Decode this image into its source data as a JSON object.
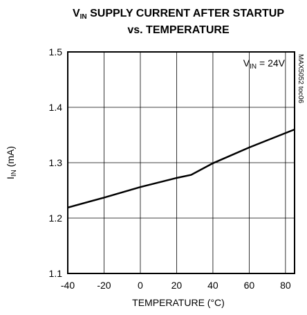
{
  "chart_data": {
    "type": "line",
    "title": {
      "symbol": "V",
      "subscript": "IN",
      "rest": " SUPPLY CURRENT AFTER STARTUP",
      "line2": "vs. TEMPERATURE"
    },
    "y_label": {
      "symbol": "I",
      "subscript": "IN",
      "rest": " (mA)"
    },
    "x_label": "TEMPERATURE (°C)",
    "annotation": {
      "symbol": "V",
      "subscript": "IN",
      "rest": " = 24V"
    },
    "side_note": "MAX5052 toc06",
    "x": [
      -40,
      -20,
      0,
      20,
      28,
      40,
      60,
      85
    ],
    "series": [
      {
        "name": "VIN = 24V",
        "color": "#000000",
        "values": [
          1.219,
          1.237,
          1.256,
          1.2725,
          1.278,
          1.299,
          1.3275,
          1.36
        ]
      }
    ],
    "xlim": [
      -40,
      85
    ],
    "xticks": [
      -40,
      -20,
      0,
      20,
      40,
      60,
      80
    ],
    "ylim": [
      1.1,
      1.5
    ],
    "yticks": [
      1.1,
      1.2,
      1.3,
      1.4,
      1.5
    ],
    "grid": true
  }
}
